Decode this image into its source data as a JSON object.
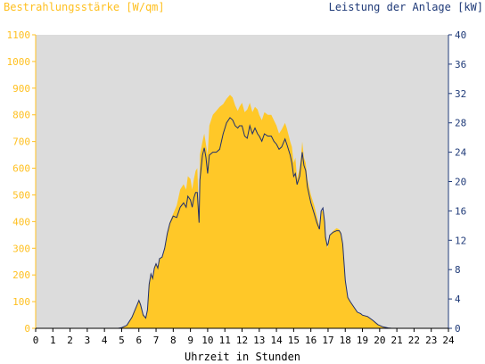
{
  "chart_data": {
    "type": "area",
    "title_left": "Bestrahlungsstärke [W/qm]",
    "title_right": "Leistung der Anlage [kW]",
    "xlabel": "Uhrzeit in Stunden",
    "xlim": [
      0,
      24
    ],
    "x_ticks": [
      "0",
      "1",
      "2",
      "3",
      "4",
      "5",
      "6",
      "7",
      "8",
      "9",
      "10",
      "11",
      "12",
      "13",
      "14",
      "15",
      "16",
      "17",
      "18",
      "19",
      "20",
      "21",
      "22",
      "23",
      "24"
    ],
    "y_left_lim": [
      0,
      1100
    ],
    "y_left_ticks": [
      "0",
      "100",
      "200",
      "300",
      "400",
      "500",
      "600",
      "700",
      "800",
      "900",
      "1000",
      "1100"
    ],
    "y_right_lim": [
      0,
      40
    ],
    "y_right_ticks": [
      "0",
      "4",
      "8",
      "12",
      "16",
      "20",
      "24",
      "28",
      "32",
      "36",
      "40"
    ],
    "grid": false,
    "series": [
      {
        "name": "Bestrahlungsstärke [W/qm]",
        "axis": "left",
        "color": "#ffc828",
        "style": "area",
        "points": [
          [
            0,
            0
          ],
          [
            4.8,
            0
          ],
          [
            5.0,
            3
          ],
          [
            5.3,
            12
          ],
          [
            5.6,
            45
          ],
          [
            5.9,
            90
          ],
          [
            6.0,
            108
          ],
          [
            6.1,
            95
          ],
          [
            6.25,
            55
          ],
          [
            6.4,
            40
          ],
          [
            6.5,
            70
          ],
          [
            6.6,
            170
          ],
          [
            6.7,
            210
          ],
          [
            6.8,
            190
          ],
          [
            6.9,
            230
          ],
          [
            7.0,
            245
          ],
          [
            7.1,
            230
          ],
          [
            7.2,
            262
          ],
          [
            7.35,
            268
          ],
          [
            7.5,
            300
          ],
          [
            7.65,
            360
          ],
          [
            7.8,
            400
          ],
          [
            8.0,
            430
          ],
          [
            8.2,
            460
          ],
          [
            8.4,
            520
          ],
          [
            8.6,
            540
          ],
          [
            8.75,
            520
          ],
          [
            8.85,
            570
          ],
          [
            9.0,
            560
          ],
          [
            9.1,
            520
          ],
          [
            9.2,
            560
          ],
          [
            9.3,
            590
          ],
          [
            9.4,
            600
          ],
          [
            9.5,
            420
          ],
          [
            9.55,
            650
          ],
          [
            9.7,
            700
          ],
          [
            9.8,
            730
          ],
          [
            9.9,
            690
          ],
          [
            10.0,
            650
          ],
          [
            10.1,
            760
          ],
          [
            10.3,
            800
          ],
          [
            10.5,
            815
          ],
          [
            10.7,
            830
          ],
          [
            10.9,
            840
          ],
          [
            11.1,
            860
          ],
          [
            11.3,
            875
          ],
          [
            11.45,
            865
          ],
          [
            11.6,
            835
          ],
          [
            11.75,
            815
          ],
          [
            11.85,
            830
          ],
          [
            12.0,
            845
          ],
          [
            12.15,
            810
          ],
          [
            12.3,
            820
          ],
          [
            12.45,
            845
          ],
          [
            12.6,
            810
          ],
          [
            12.75,
            830
          ],
          [
            12.9,
            820
          ],
          [
            13.0,
            800
          ],
          [
            13.15,
            780
          ],
          [
            13.3,
            810
          ],
          [
            13.5,
            800
          ],
          [
            13.7,
            800
          ],
          [
            13.85,
            780
          ],
          [
            14.0,
            760
          ],
          [
            14.15,
            730
          ],
          [
            14.3,
            745
          ],
          [
            14.5,
            770
          ],
          [
            14.6,
            750
          ],
          [
            14.8,
            700
          ],
          [
            14.9,
            680
          ],
          [
            15.0,
            620
          ],
          [
            15.1,
            640
          ],
          [
            15.2,
            560
          ],
          [
            15.35,
            600
          ],
          [
            15.45,
            660
          ],
          [
            15.5,
            700
          ],
          [
            15.6,
            640
          ],
          [
            15.7,
            620
          ],
          [
            15.8,
            560
          ],
          [
            15.9,
            530
          ],
          [
            16.0,
            500
          ],
          [
            16.2,
            460
          ],
          [
            16.35,
            420
          ],
          [
            16.5,
            380
          ],
          [
            16.6,
            440
          ],
          [
            16.7,
            440
          ],
          [
            16.8,
            400
          ],
          [
            16.85,
            360
          ],
          [
            16.95,
            300
          ],
          [
            17.0,
            310
          ],
          [
            17.1,
            350
          ],
          [
            17.3,
            365
          ],
          [
            17.5,
            375
          ],
          [
            17.65,
            370
          ],
          [
            17.75,
            360
          ],
          [
            17.85,
            320
          ],
          [
            18.0,
            180
          ],
          [
            18.15,
            120
          ],
          [
            18.3,
            100
          ],
          [
            18.5,
            80
          ],
          [
            18.7,
            60
          ],
          [
            18.9,
            55
          ],
          [
            19.0,
            50
          ],
          [
            19.3,
            45
          ],
          [
            19.6,
            30
          ],
          [
            19.9,
            15
          ],
          [
            20.2,
            6
          ],
          [
            20.5,
            2
          ],
          [
            20.7,
            0
          ],
          [
            24,
            0
          ]
        ]
      },
      {
        "name": "Leistung der Anlage [kW]",
        "axis": "right",
        "color": "#1f2f6e",
        "style": "line",
        "points": [
          [
            0,
            0
          ],
          [
            4.8,
            0
          ],
          [
            5.0,
            0.1
          ],
          [
            5.3,
            0.4
          ],
          [
            5.6,
            1.5
          ],
          [
            5.9,
            3.2
          ],
          [
            6.0,
            3.8
          ],
          [
            6.1,
            3.2
          ],
          [
            6.25,
            1.8
          ],
          [
            6.4,
            1.4
          ],
          [
            6.5,
            2.5
          ],
          [
            6.6,
            6.0
          ],
          [
            6.7,
            7.4
          ],
          [
            6.8,
            6.8
          ],
          [
            6.9,
            8.2
          ],
          [
            7.0,
            8.8
          ],
          [
            7.1,
            8.2
          ],
          [
            7.2,
            9.5
          ],
          [
            7.35,
            9.7
          ],
          [
            7.5,
            10.9
          ],
          [
            7.65,
            12.9
          ],
          [
            7.8,
            14.3
          ],
          [
            8.0,
            15.3
          ],
          [
            8.2,
            15.1
          ],
          [
            8.4,
            16.5
          ],
          [
            8.6,
            17.1
          ],
          [
            8.75,
            16.5
          ],
          [
            8.85,
            18.0
          ],
          [
            9.0,
            17.5
          ],
          [
            9.1,
            16.5
          ],
          [
            9.2,
            17.8
          ],
          [
            9.3,
            18.5
          ],
          [
            9.4,
            18.5
          ],
          [
            9.5,
            14.4
          ],
          [
            9.55,
            20.2
          ],
          [
            9.7,
            23.6
          ],
          [
            9.8,
            24.6
          ],
          [
            9.9,
            23.3
          ],
          [
            10.0,
            21.1
          ],
          [
            10.1,
            23.6
          ],
          [
            10.3,
            24.0
          ],
          [
            10.5,
            24.0
          ],
          [
            10.7,
            24.4
          ],
          [
            10.9,
            26.5
          ],
          [
            11.1,
            28.0
          ],
          [
            11.3,
            28.7
          ],
          [
            11.45,
            28.4
          ],
          [
            11.6,
            27.6
          ],
          [
            11.75,
            27.3
          ],
          [
            11.85,
            27.6
          ],
          [
            12.0,
            27.6
          ],
          [
            12.15,
            26.2
          ],
          [
            12.3,
            25.9
          ],
          [
            12.45,
            27.6
          ],
          [
            12.6,
            26.5
          ],
          [
            12.75,
            27.3
          ],
          [
            12.9,
            26.5
          ],
          [
            13.0,
            26.2
          ],
          [
            13.15,
            25.5
          ],
          [
            13.3,
            26.5
          ],
          [
            13.5,
            26.2
          ],
          [
            13.7,
            26.2
          ],
          [
            13.85,
            25.5
          ],
          [
            14.0,
            25.1
          ],
          [
            14.15,
            24.4
          ],
          [
            14.3,
            24.7
          ],
          [
            14.5,
            25.8
          ],
          [
            14.6,
            25.1
          ],
          [
            14.8,
            23.6
          ],
          [
            14.9,
            22.5
          ],
          [
            15.0,
            20.7
          ],
          [
            15.1,
            21.1
          ],
          [
            15.2,
            19.6
          ],
          [
            15.35,
            20.7
          ],
          [
            15.45,
            22.9
          ],
          [
            15.5,
            24.0
          ],
          [
            15.6,
            22.2
          ],
          [
            15.7,
            21.5
          ],
          [
            15.8,
            19.3
          ],
          [
            15.9,
            18.2
          ],
          [
            16.0,
            17.1
          ],
          [
            16.2,
            15.6
          ],
          [
            16.35,
            14.4
          ],
          [
            16.5,
            13.5
          ],
          [
            16.6,
            16.0
          ],
          [
            16.7,
            16.4
          ],
          [
            16.8,
            14.5
          ],
          [
            16.85,
            12.4
          ],
          [
            16.95,
            11.3
          ],
          [
            17.0,
            11.5
          ],
          [
            17.1,
            12.7
          ],
          [
            17.3,
            13.1
          ],
          [
            17.5,
            13.3
          ],
          [
            17.65,
            13.3
          ],
          [
            17.75,
            12.9
          ],
          [
            17.85,
            11.5
          ],
          [
            18.0,
            6.5
          ],
          [
            18.15,
            4.2
          ],
          [
            18.3,
            3.6
          ],
          [
            18.5,
            2.9
          ],
          [
            18.7,
            2.2
          ],
          [
            18.9,
            2.0
          ],
          [
            19.0,
            1.8
          ],
          [
            19.3,
            1.6
          ],
          [
            19.6,
            1.1
          ],
          [
            19.9,
            0.5
          ],
          [
            20.2,
            0.2
          ],
          [
            20.5,
            0.05
          ],
          [
            20.7,
            0
          ],
          [
            24,
            0
          ]
        ]
      }
    ],
    "colors": {
      "plot_background": "#dcdcdc",
      "left_axis": "#ffc020",
      "right_axis": "#1f3a78",
      "x_axis": "#000000"
    }
  }
}
